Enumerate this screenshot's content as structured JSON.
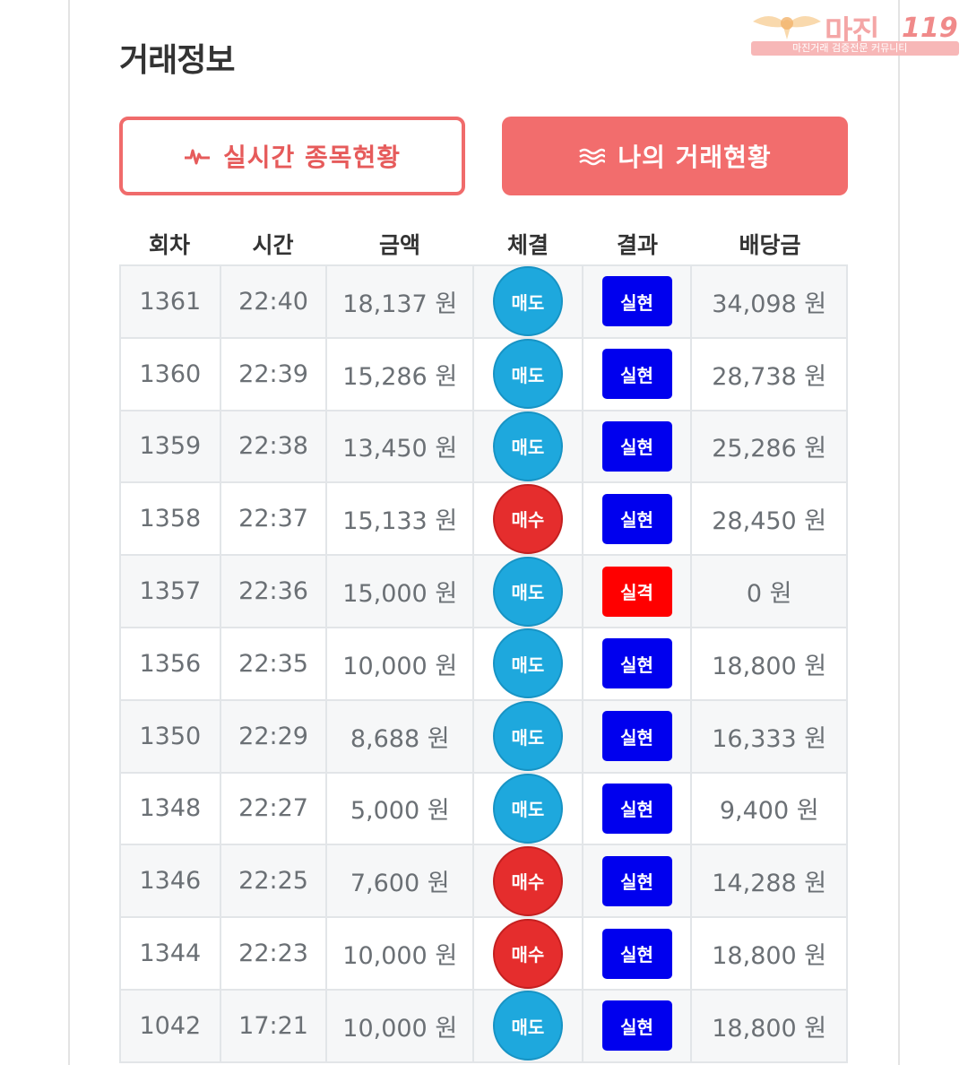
{
  "header": {
    "title": "거래정보"
  },
  "watermark": {
    "brand": "마진",
    "number": "119",
    "tagline": "마진거래 검증전문 커뮤니티"
  },
  "tabs": [
    {
      "label": "실시간 종목현황",
      "icon": "pulse-icon",
      "active": false
    },
    {
      "label": "나의 거래현황",
      "icon": "waves-icon",
      "active": true
    }
  ],
  "table": {
    "columns": [
      "회차",
      "시간",
      "금액",
      "체결",
      "결과",
      "배당금"
    ],
    "rows": [
      {
        "round": "1361",
        "time": "22:40",
        "amount": "18,137 원",
        "side": "매도",
        "side_type": "sell",
        "result": "실현",
        "result_type": "ok",
        "payout": "34,098 원"
      },
      {
        "round": "1360",
        "time": "22:39",
        "amount": "15,286 원",
        "side": "매도",
        "side_type": "sell",
        "result": "실현",
        "result_type": "ok",
        "payout": "28,738 원"
      },
      {
        "round": "1359",
        "time": "22:38",
        "amount": "13,450 원",
        "side": "매도",
        "side_type": "sell",
        "result": "실현",
        "result_type": "ok",
        "payout": "25,286 원"
      },
      {
        "round": "1358",
        "time": "22:37",
        "amount": "15,133 원",
        "side": "매수",
        "side_type": "buy",
        "result": "실현",
        "result_type": "ok",
        "payout": "28,450 원"
      },
      {
        "round": "1357",
        "time": "22:36",
        "amount": "15,000 원",
        "side": "매도",
        "side_type": "sell",
        "result": "실격",
        "result_type": "fail",
        "payout": "0 원"
      },
      {
        "round": "1356",
        "time": "22:35",
        "amount": "10,000 원",
        "side": "매도",
        "side_type": "sell",
        "result": "실현",
        "result_type": "ok",
        "payout": "18,800 원"
      },
      {
        "round": "1350",
        "time": "22:29",
        "amount": "8,688 원",
        "side": "매도",
        "side_type": "sell",
        "result": "실현",
        "result_type": "ok",
        "payout": "16,333 원"
      },
      {
        "round": "1348",
        "time": "22:27",
        "amount": "5,000 원",
        "side": "매도",
        "side_type": "sell",
        "result": "실현",
        "result_type": "ok",
        "payout": "9,400 원"
      },
      {
        "round": "1346",
        "time": "22:25",
        "amount": "7,600 원",
        "side": "매수",
        "side_type": "buy",
        "result": "실현",
        "result_type": "ok",
        "payout": "14,288 원"
      },
      {
        "round": "1344",
        "time": "22:23",
        "amount": "10,000 원",
        "side": "매수",
        "side_type": "buy",
        "result": "실현",
        "result_type": "ok",
        "payout": "18,800 원"
      },
      {
        "round": "1042",
        "time": "17:21",
        "amount": "10,000 원",
        "side": "매도",
        "side_type": "sell",
        "result": "실현",
        "result_type": "ok",
        "payout": "18,800 원"
      }
    ]
  },
  "colors": {
    "accent": "#f26d6d",
    "sell": "#1ea8dd",
    "buy": "#e52d2d",
    "realized": "#0000ee",
    "disqualified": "#ff0000"
  }
}
